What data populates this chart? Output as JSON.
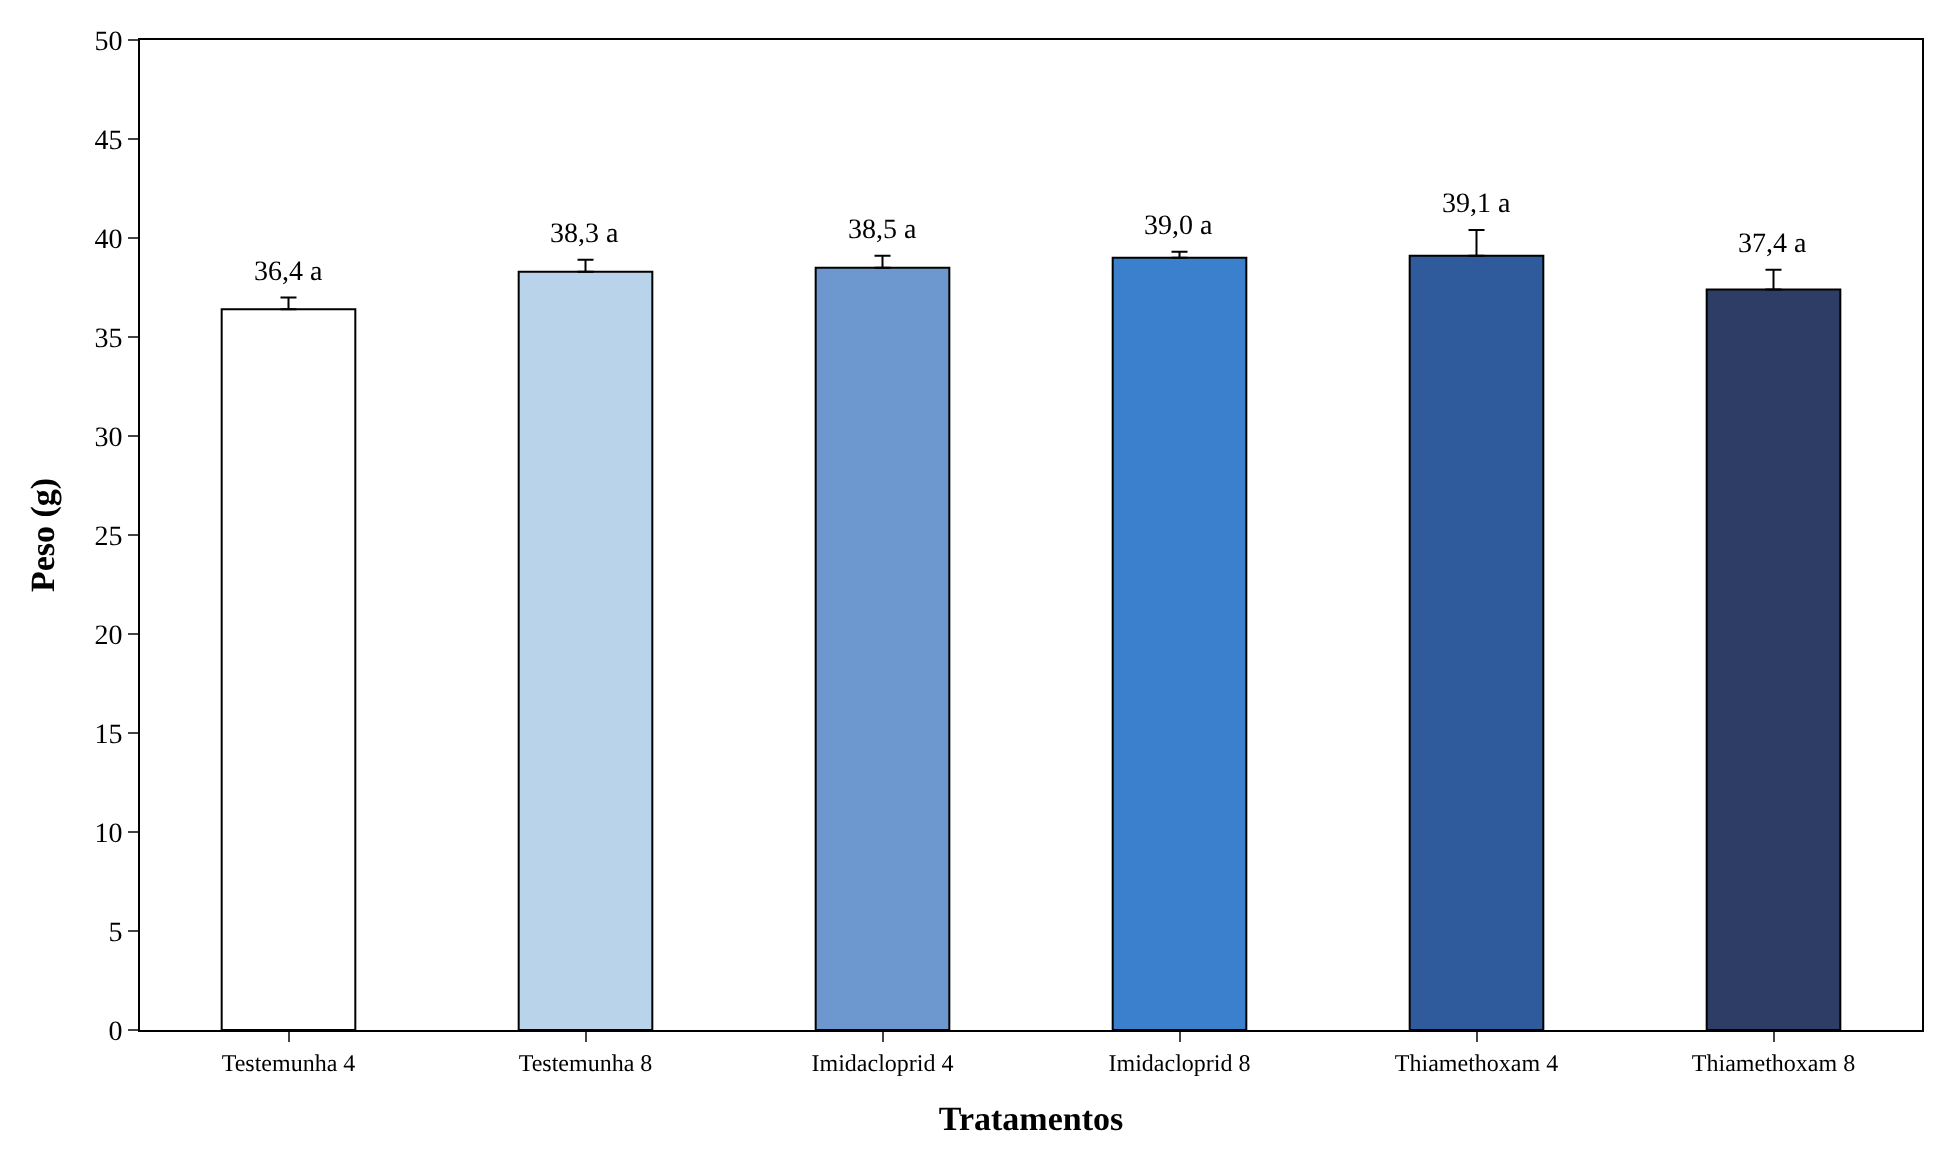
{
  "chart_data": {
    "type": "bar",
    "xlabel": "Tratamentos",
    "ylabel": "Peso (g)",
    "categories": [
      "Testemunha 4",
      "Testemunha 8",
      "Imidacloprid 4",
      "Imidacloprid 8",
      "Thiamethoxam 4",
      "Thiamethoxam 8"
    ],
    "values": [
      36.4,
      38.3,
      38.5,
      39.0,
      39.1,
      37.4
    ],
    "colors": [
      "#ffffff",
      "#b9d3ea",
      "#6d98cf",
      "#3b80cc",
      "#2f5b9c",
      "#2d3d66"
    ],
    "errors": [
      [
        36.4,
        37.0
      ],
      [
        38.3,
        38.9
      ],
      [
        38.5,
        39.1
      ],
      [
        39.0,
        39.3
      ],
      [
        39.1,
        40.4
      ],
      [
        37.4,
        38.4
      ]
    ],
    "value_labels": [
      "36,4 a",
      "38,3 a",
      "38,5 a",
      "39,0 a",
      "39,1 a",
      "37,4 a"
    ],
    "ylim": [
      0,
      50
    ],
    "yticks": [
      0,
      5,
      10,
      15,
      20,
      25,
      30,
      35,
      40,
      45,
      50
    ]
  }
}
